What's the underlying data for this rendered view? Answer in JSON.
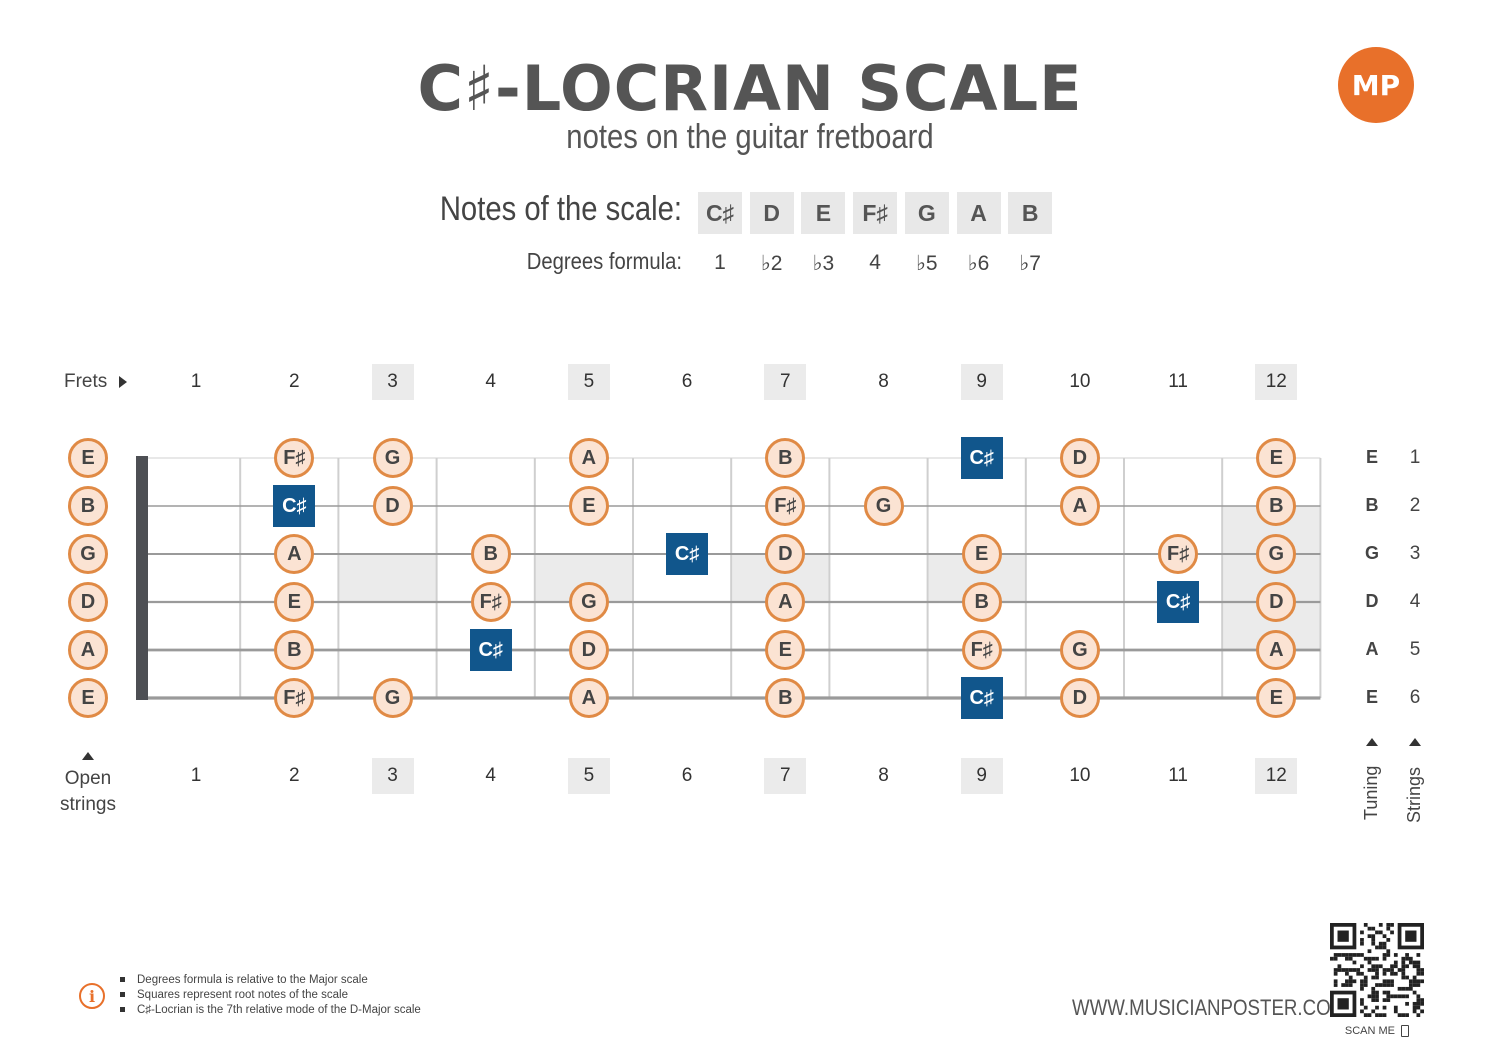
{
  "header": {
    "title": "C♯-LOCRIAN SCALE",
    "subtitle": "notes on the guitar fretboard",
    "logo_text": "MP"
  },
  "scale": {
    "notes_label": "Notes of the scale:",
    "degrees_label": "Degrees formula:",
    "notes": [
      "C♯",
      "D",
      "E",
      "F♯",
      "G",
      "A",
      "B"
    ],
    "degrees": [
      "1",
      "♭2",
      "♭3",
      "4",
      "♭5",
      "♭6",
      "♭7"
    ]
  },
  "fretboard": {
    "frets_label": "Frets",
    "fret_numbers": [
      "1",
      "2",
      "3",
      "4",
      "5",
      "6",
      "7",
      "8",
      "9",
      "10",
      "11",
      "12"
    ],
    "highlighted_frets": [
      3,
      5,
      7,
      9,
      12
    ],
    "open_label_line1": "Open",
    "open_label_line2": "strings",
    "tuning_label": "Tuning",
    "strings_label": "Strings",
    "tuning": [
      "E",
      "B",
      "G",
      "D",
      "A",
      "E"
    ],
    "string_numbers": [
      "1",
      "2",
      "3",
      "4",
      "5",
      "6"
    ],
    "open_strings": [
      "E",
      "B",
      "G",
      "D",
      "A",
      "E"
    ],
    "notes": [
      [
        {
          "fret": 2,
          "note": "F♯"
        },
        {
          "fret": 3,
          "note": "G"
        },
        {
          "fret": 5,
          "note": "A"
        },
        {
          "fret": 7,
          "note": "B"
        },
        {
          "fret": 9,
          "note": "C♯",
          "root": true
        },
        {
          "fret": 10,
          "note": "D"
        },
        {
          "fret": 12,
          "note": "E"
        }
      ],
      [
        {
          "fret": 2,
          "note": "C♯",
          "root": true
        },
        {
          "fret": 3,
          "note": "D"
        },
        {
          "fret": 5,
          "note": "E"
        },
        {
          "fret": 7,
          "note": "F♯"
        },
        {
          "fret": 8,
          "note": "G"
        },
        {
          "fret": 10,
          "note": "A"
        },
        {
          "fret": 12,
          "note": "B"
        }
      ],
      [
        {
          "fret": 2,
          "note": "A"
        },
        {
          "fret": 4,
          "note": "B"
        },
        {
          "fret": 6,
          "note": "C♯",
          "root": true
        },
        {
          "fret": 7,
          "note": "D"
        },
        {
          "fret": 9,
          "note": "E"
        },
        {
          "fret": 11,
          "note": "F♯"
        },
        {
          "fret": 12,
          "note": "G"
        }
      ],
      [
        {
          "fret": 2,
          "note": "E"
        },
        {
          "fret": 4,
          "note": "F♯"
        },
        {
          "fret": 5,
          "note": "G"
        },
        {
          "fret": 7,
          "note": "A"
        },
        {
          "fret": 9,
          "note": "B"
        },
        {
          "fret": 11,
          "note": "C♯",
          "root": true
        },
        {
          "fret": 12,
          "note": "D"
        }
      ],
      [
        {
          "fret": 2,
          "note": "B"
        },
        {
          "fret": 4,
          "note": "C♯",
          "root": true
        },
        {
          "fret": 5,
          "note": "D"
        },
        {
          "fret": 7,
          "note": "E"
        },
        {
          "fret": 9,
          "note": "F♯"
        },
        {
          "fret": 10,
          "note": "G"
        },
        {
          "fret": 12,
          "note": "A"
        }
      ],
      [
        {
          "fret": 2,
          "note": "F♯"
        },
        {
          "fret": 3,
          "note": "G"
        },
        {
          "fret": 5,
          "note": "A"
        },
        {
          "fret": 7,
          "note": "B"
        },
        {
          "fret": 9,
          "note": "C♯",
          "root": true
        },
        {
          "fret": 10,
          "note": "D"
        },
        {
          "fret": 12,
          "note": "E"
        }
      ]
    ]
  },
  "footer": {
    "info_icon": "info-icon",
    "info_lines": [
      "Degrees formula is relative to the Major scale",
      "Squares represent root notes of the scale",
      "C♯-Locrian is the 7th relative mode of the D-Major scale"
    ],
    "website": "WWW.MUSICIANPOSTER.COM",
    "scan_me": "SCAN ME"
  },
  "colors": {
    "accent": "#e8702a",
    "root": "#11568c",
    "note_fill": "#fbe3d3",
    "note_border": "#e08a45",
    "inlay": "#ebebeb"
  }
}
